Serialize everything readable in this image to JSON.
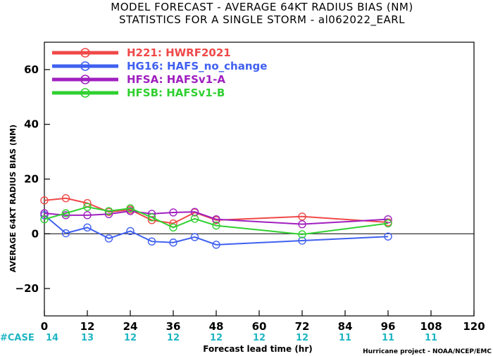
{
  "chart_data": {
    "type": "line",
    "title": "MODEL FORECAST - AVERAGE 64KT RADIUS BIAS (NM)",
    "subtitle": "STATISTICS FOR A SINGLE STORM - al062022_EARL",
    "xlabel": "Forecast lead time (hr)",
    "ylabel": "AVERAGE 64KT RADIUS BIAS (NM)",
    "xlim": [
      0,
      120
    ],
    "ylim": [
      -30,
      70
    ],
    "xticks": [
      0,
      12,
      24,
      36,
      48,
      60,
      72,
      84,
      96,
      108,
      120
    ],
    "yticks": [
      -20,
      0,
      20,
      40,
      60
    ],
    "zero_line": true,
    "legend_position": "top-left",
    "series": [
      {
        "name": "H221: HWRF2021",
        "color": "#f04848",
        "x": [
          0,
          6,
          12,
          18,
          24,
          30,
          36,
          42,
          48,
          72,
          96
        ],
        "y": [
          12.2,
          13.0,
          11.2,
          8.0,
          8.8,
          5.0,
          3.8,
          7.8,
          5.0,
          6.3,
          4.2
        ]
      },
      {
        "name": "HG16: HAFS_no_change",
        "color": "#4060f0",
        "x": [
          0,
          6,
          12,
          18,
          24,
          30,
          36,
          42,
          48,
          72,
          96
        ],
        "y": [
          6.8,
          0.2,
          2.3,
          -1.7,
          1.0,
          -2.8,
          -3.2,
          -1.2,
          -4.0,
          -2.5,
          -1.0
        ]
      },
      {
        "name": "HFSA: HAFSv1-A",
        "color": "#a020c0",
        "x": [
          0,
          6,
          12,
          18,
          24,
          30,
          36,
          42,
          48,
          72,
          96
        ],
        "y": [
          7.5,
          6.8,
          6.8,
          7.2,
          8.3,
          7.3,
          7.8,
          8.0,
          5.3,
          3.5,
          5.3
        ]
      },
      {
        "name": "HFSB: HAFSv1-B",
        "color": "#30d030",
        "x": [
          0,
          6,
          12,
          18,
          24,
          30,
          36,
          42,
          48,
          72,
          96
        ],
        "y": [
          5.3,
          7.5,
          9.8,
          8.3,
          9.3,
          6.0,
          2.3,
          5.5,
          3.0,
          -0.2,
          3.8
        ]
      }
    ],
    "case_label": "#CASE",
    "case_counts": [
      {
        "x": 0,
        "n": "14"
      },
      {
        "x": 12,
        "n": "13"
      },
      {
        "x": 24,
        "n": "12"
      },
      {
        "x": 36,
        "n": "12"
      },
      {
        "x": 48,
        "n": "12"
      },
      {
        "x": 60,
        "n": "12"
      },
      {
        "x": 72,
        "n": "12"
      },
      {
        "x": 84,
        "n": "11"
      },
      {
        "x": 96,
        "n": "11"
      },
      {
        "x": 108,
        "n": "11"
      }
    ],
    "credit": "Hurricane project - NOAA/NCEP/EMC"
  }
}
